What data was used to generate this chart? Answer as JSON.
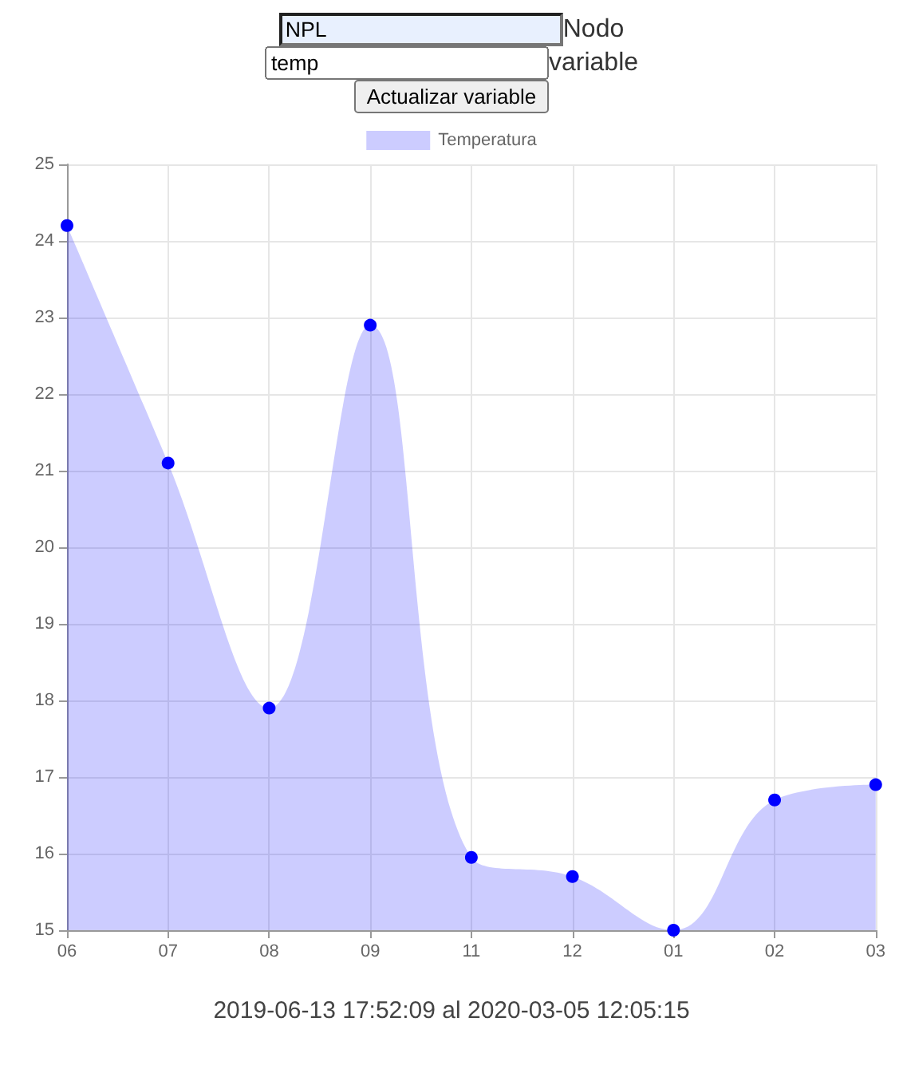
{
  "chart_data": {
    "type": "area",
    "categories": [
      "06",
      "07",
      "08",
      "09",
      "11",
      "12",
      "01",
      "02",
      "03"
    ],
    "series": [
      {
        "name": "Temperatura",
        "color": "#0000ff",
        "values": [
          24.2,
          21.1,
          17.9,
          22.9,
          15.95,
          15.7,
          15.0,
          16.7,
          16.9
        ]
      }
    ],
    "ylim": [
      15,
      25
    ],
    "yticks": [
      15,
      16,
      17,
      18,
      19,
      20,
      21,
      22,
      23,
      24,
      25
    ],
    "grid": true,
    "legend": "top",
    "marker": "circle",
    "annotations": [
      "NPL",
      "Nodo",
      "temp",
      "variable",
      "Actualizar variable",
      "2019-06-13 17:52:09 al 2020-03-05 12:05:15"
    ]
  }
}
